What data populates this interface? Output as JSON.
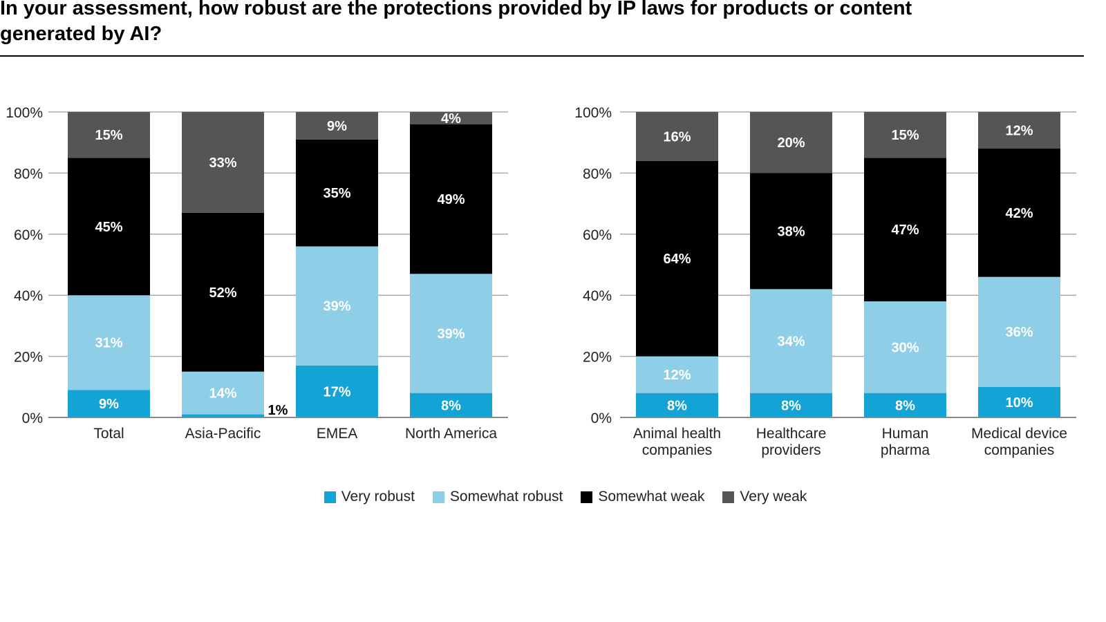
{
  "title": "In your assessment, how robust are the protections provided by IP laws for products or content generated by AI?",
  "chart_data": [
    {
      "type": "bar",
      "stacked": true,
      "categories": [
        "Total",
        "Asia-Pacific",
        "EMEA",
        "North America"
      ],
      "yticks": [
        "0%",
        "20%",
        "40%",
        "60%",
        "80%",
        "100%"
      ],
      "ylim": [
        0,
        100
      ],
      "grid": true,
      "series": [
        {
          "name": "Very robust",
          "values": [
            9,
            1,
            17,
            8
          ]
        },
        {
          "name": "Somewhat robust",
          "values": [
            31,
            14,
            39,
            39
          ]
        },
        {
          "name": "Somewhat weak",
          "values": [
            45,
            52,
            35,
            49
          ]
        },
        {
          "name": "Very weak",
          "values": [
            15,
            33,
            9,
            4
          ]
        }
      ]
    },
    {
      "type": "bar",
      "stacked": true,
      "categories": [
        "Animal health companies",
        "Healthcare providers",
        "Human pharma",
        "Medical device companies"
      ],
      "yticks": [
        "0%",
        "20%",
        "40%",
        "60%",
        "80%",
        "100%"
      ],
      "ylim": [
        0,
        100
      ],
      "grid": true,
      "series": [
        {
          "name": "Very robust",
          "values": [
            8,
            8,
            8,
            10
          ]
        },
        {
          "name": "Somewhat robust",
          "values": [
            12,
            34,
            30,
            36
          ]
        },
        {
          "name": "Somewhat weak",
          "values": [
            64,
            38,
            47,
            42
          ]
        },
        {
          "name": "Very weak",
          "values": [
            16,
            20,
            15,
            12
          ]
        }
      ]
    }
  ],
  "legend": {
    "placement": "bottom",
    "items": [
      "Very robust",
      "Somewhat robust",
      "Somewhat weak",
      "Very weak"
    ]
  },
  "colors": [
    "#14a3d5",
    "#8ecfe7",
    "#000000",
    "#555555"
  ]
}
